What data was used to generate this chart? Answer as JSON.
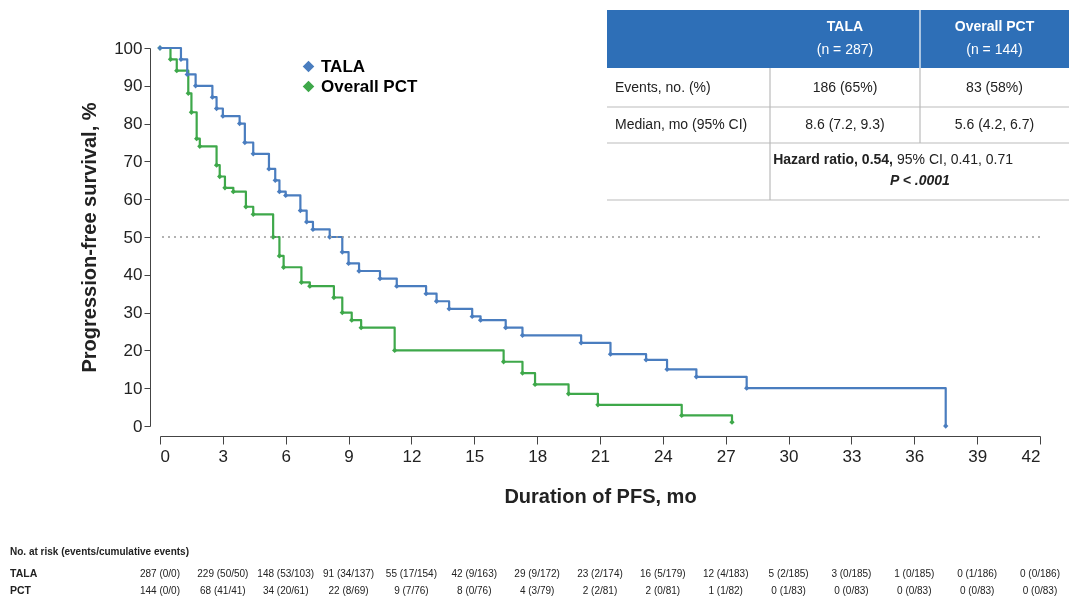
{
  "chart_data": {
    "type": "step",
    "xlabel": "Duration of PFS, mo",
    "ylabel": "Progression-free survival, %",
    "xlim": [
      0,
      42
    ],
    "xticks": [
      0,
      3,
      6,
      9,
      12,
      15,
      18,
      21,
      24,
      27,
      30,
      33,
      36,
      39,
      42
    ],
    "ylim": [
      0,
      100
    ],
    "yticks": [
      0,
      10,
      20,
      30,
      40,
      50,
      60,
      70,
      80,
      90,
      100
    ],
    "grid": false,
    "legend": "top left",
    "marker": "diamond",
    "line_style": "solid",
    "series": [
      {
        "name": "TALA",
        "color": "#4a7dbf",
        "x": [
          0,
          1.0,
          1.3,
          1.7,
          2.5,
          2.7,
          3.0,
          3.8,
          4.05,
          4.45,
          5.2,
          5.5,
          5.7,
          6.0,
          6.7,
          7.0,
          7.3,
          8.1,
          8.7,
          9.0,
          9.5,
          10.5,
          11.3,
          12.7,
          13.2,
          13.8,
          14.9,
          15.3,
          16.5,
          17.3,
          20.1,
          21.5,
          23.2,
          24.2,
          25.6,
          28.0,
          37.5
        ],
        "values": [
          100,
          97,
          93,
          90,
          87,
          84,
          82,
          80,
          75,
          72,
          68,
          65,
          62,
          61,
          57,
          54,
          52,
          50,
          46,
          43,
          41,
          39,
          37,
          35,
          33,
          31,
          29,
          28,
          26,
          24,
          22,
          19,
          17.5,
          15,
          13,
          10,
          0
        ]
      },
      {
        "name": "Overall PCT",
        "color": "#3ea84a",
        "x": [
          0,
          0.5,
          0.8,
          1.35,
          1.5,
          1.75,
          1.9,
          2.7,
          2.85,
          3.1,
          3.5,
          4.1,
          4.45,
          5.4,
          5.7,
          5.9,
          6.75,
          7.15,
          8.3,
          8.7,
          9.15,
          9.6,
          11.2,
          16.4,
          17.3,
          17.9,
          19.5,
          20.9,
          24.9,
          27.3
        ],
        "values": [
          100,
          97,
          94,
          88,
          83,
          76,
          74,
          69,
          66,
          63,
          62,
          58,
          56,
          50,
          45,
          42,
          38,
          37,
          34,
          30,
          28,
          26,
          20,
          17,
          14,
          11,
          8.5,
          5.6,
          2.8,
          1
        ]
      }
    ],
    "ref_lines": [
      {
        "axis": "y",
        "value": 50,
        "color": "#999999",
        "line_style": "dotted"
      }
    ],
    "annotations": [
      "TALA",
      "(n = 287)",
      "Overall PCT",
      "(n = 144)",
      "Events, no. (%)",
      "186 (65%)",
      "83 (58%)",
      "Median, mo (95% CI)",
      "8.6 (7.2, 9.3)",
      "5.6 (4.2, 6.7)",
      "Hazard ratio, 0.54,",
      "95% CI, 0.41, 0.71",
      "P < .0001",
      "No. at risk (events/cumulative events)",
      "TALA",
      "287 (0/0)",
      "229 (50/50)",
      "148 (53/103)",
      "91 (34/137)",
      "55 (17/154)",
      "42 (9/163)",
      "29 (9/172)",
      "23 (2/174)",
      "16 (5/179)",
      "12 (4/183)",
      "5 (2/185)",
      "3 (0/185)",
      "1 (0/185)",
      "0 (1/186)",
      "0 (0/186)",
      "PCT",
      "144 (0/0)",
      "68 (41/41)",
      "34 (20/61)",
      "22 (8/69)",
      "9 (7/76)",
      "8 (0/76)",
      "4 (3/79)",
      "2 (2/81)",
      "2 (0/81)",
      "1 (1/82)",
      "0 (1/83)",
      "0 (0/83)",
      "0 (0/83)",
      "0 (0/83)",
      "0 (0/83)"
    ]
  }
}
